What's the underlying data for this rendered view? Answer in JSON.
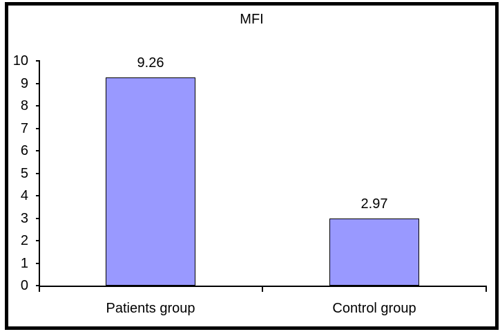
{
  "chart_data": {
    "type": "bar",
    "title": "MFI",
    "categories": [
      "Patients group",
      "Control group"
    ],
    "values": [
      9.26,
      2.97
    ],
    "data_labels": [
      "9.26",
      "2.97"
    ],
    "ylim": [
      0,
      10
    ],
    "yticks": [
      0,
      1,
      2,
      3,
      4,
      5,
      6,
      7,
      8,
      9,
      10
    ],
    "xlabel": "",
    "ylabel": "",
    "grid": false,
    "legend": "none",
    "bar_color": "#9999FF",
    "bar_border_color": "#000000",
    "axis_color": "#000000",
    "plot_background": "#FFFFFF",
    "border_color": "#000000"
  }
}
